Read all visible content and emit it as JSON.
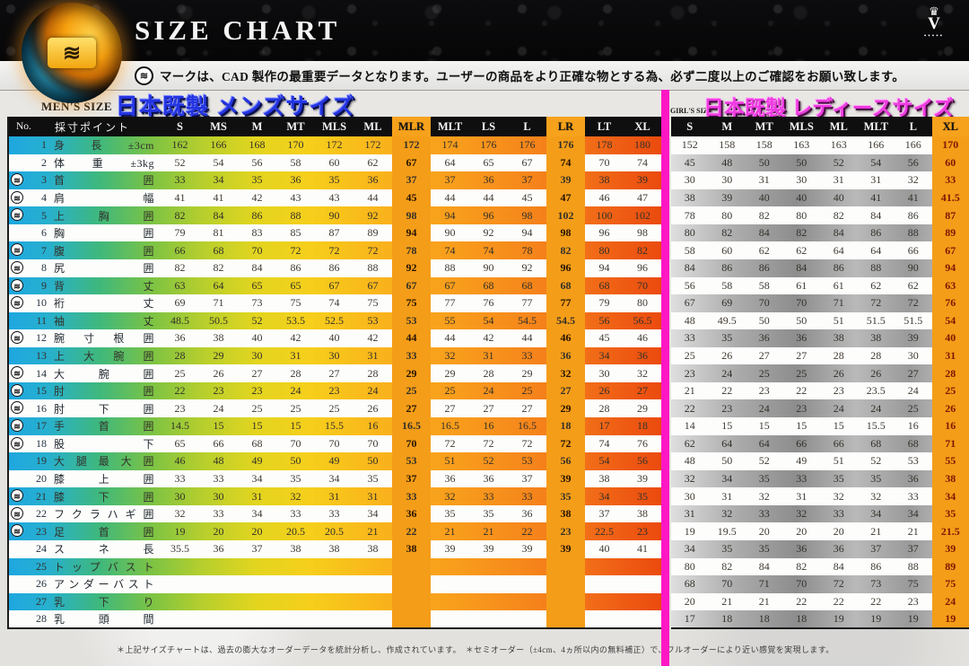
{
  "header": {
    "title": "SIZE CHART",
    "crown_icon": "♛",
    "crown_letter": "V",
    "crown_dots": "•••••"
  },
  "note": {
    "icon": "wave-mark",
    "text": "マークは、CAD 製作の最重要データとなります。ユーザーの商品をより正確な物とする為、必ず二度以上のご確認をお願い致します。"
  },
  "mens": {
    "size_label": "MEN'S SIZE",
    "title": "日本既製 メンズサイズ",
    "col_no": "No.",
    "col_point": "採寸ポイント",
    "columns": [
      "S",
      "MS",
      "M",
      "MT",
      "MLS",
      "ML",
      "MLR",
      "MLT",
      "LS",
      "L",
      "LR",
      "LT",
      "XL"
    ],
    "highlight_columns": [
      6,
      10
    ]
  },
  "girls": {
    "size_label": "GIRL'S SIZE",
    "title": "日本既製 レディースサイズ",
    "columns": [
      "S",
      "M",
      "MT",
      "MLS",
      "ML",
      "MLT",
      "L",
      "XL"
    ],
    "highlight_columns": [
      7
    ]
  },
  "colors": {
    "mens_title": "#2435e2",
    "girls_title": "#ef3be2",
    "divider_pink": "#ff17c4",
    "highlight_orange": "#f6a21c",
    "header_bg": "#0f0f10"
  },
  "rows": [
    {
      "no": "1",
      "label": "身長±3cm",
      "mark": false,
      "mens": [
        "162",
        "166",
        "168",
        "170",
        "172",
        "172",
        "172",
        "174",
        "176",
        "176",
        "176",
        "178",
        "180"
      ],
      "girls": [
        "152",
        "158",
        "158",
        "163",
        "163",
        "166",
        "166",
        "170"
      ]
    },
    {
      "no": "2",
      "label": "体重±3kg",
      "mark": false,
      "mens": [
        "52",
        "54",
        "56",
        "58",
        "60",
        "62",
        "67",
        "64",
        "65",
        "67",
        "74",
        "70",
        "74"
      ],
      "girls": [
        "45",
        "48",
        "50",
        "50",
        "52",
        "54",
        "56",
        "60"
      ]
    },
    {
      "no": "3",
      "label": "首囲",
      "mark": true,
      "mens": [
        "33",
        "34",
        "35",
        "36",
        "35",
        "36",
        "37",
        "37",
        "36",
        "37",
        "39",
        "38",
        "39"
      ],
      "girls": [
        "30",
        "30",
        "31",
        "30",
        "31",
        "31",
        "32",
        "33"
      ]
    },
    {
      "no": "4",
      "label": "肩幅",
      "mark": true,
      "mens": [
        "41",
        "41",
        "42",
        "43",
        "43",
        "44",
        "45",
        "44",
        "44",
        "45",
        "47",
        "46",
        "47"
      ],
      "girls": [
        "38",
        "39",
        "40",
        "40",
        "40",
        "41",
        "41",
        "41.5"
      ]
    },
    {
      "no": "5",
      "label": "上胸囲",
      "mark": true,
      "mens": [
        "82",
        "84",
        "86",
        "88",
        "90",
        "92",
        "98",
        "94",
        "96",
        "98",
        "102",
        "100",
        "102"
      ],
      "girls": [
        "78",
        "80",
        "82",
        "80",
        "82",
        "84",
        "86",
        "87"
      ]
    },
    {
      "no": "6",
      "label": "胸囲",
      "mark": false,
      "mens": [
        "79",
        "81",
        "83",
        "85",
        "87",
        "89",
        "94",
        "90",
        "92",
        "94",
        "98",
        "96",
        "98"
      ],
      "girls": [
        "80",
        "82",
        "84",
        "82",
        "84",
        "86",
        "88",
        "89"
      ]
    },
    {
      "no": "7",
      "label": "腹囲",
      "mark": true,
      "mens": [
        "66",
        "68",
        "70",
        "72",
        "72",
        "72",
        "78",
        "74",
        "74",
        "78",
        "82",
        "80",
        "82"
      ],
      "girls": [
        "58",
        "60",
        "62",
        "62",
        "64",
        "64",
        "66",
        "67"
      ]
    },
    {
      "no": "8",
      "label": "尻囲",
      "mark": true,
      "mens": [
        "82",
        "82",
        "84",
        "86",
        "86",
        "88",
        "92",
        "88",
        "90",
        "92",
        "96",
        "94",
        "96"
      ],
      "girls": [
        "84",
        "86",
        "86",
        "84",
        "86",
        "88",
        "90",
        "94"
      ]
    },
    {
      "no": "9",
      "label": "背丈",
      "mark": true,
      "mens": [
        "63",
        "64",
        "65",
        "65",
        "67",
        "67",
        "67",
        "67",
        "68",
        "68",
        "68",
        "68",
        "70"
      ],
      "girls": [
        "56",
        "58",
        "58",
        "61",
        "61",
        "62",
        "62",
        "63"
      ]
    },
    {
      "no": "10",
      "label": "裄丈",
      "mark": true,
      "mens": [
        "69",
        "71",
        "73",
        "75",
        "74",
        "75",
        "75",
        "77",
        "76",
        "77",
        "77",
        "79",
        "80"
      ],
      "girls": [
        "67",
        "69",
        "70",
        "70",
        "71",
        "72",
        "72",
        "76"
      ]
    },
    {
      "no": "11",
      "label": "袖丈",
      "mark": false,
      "mens": [
        "48.5",
        "50.5",
        "52",
        "53.5",
        "52.5",
        "53",
        "53",
        "55",
        "54",
        "54.5",
        "54.5",
        "56",
        "56.5"
      ],
      "girls": [
        "48",
        "49.5",
        "50",
        "50",
        "51",
        "51.5",
        "51.5",
        "54"
      ]
    },
    {
      "no": "12",
      "label": "腕寸根囲",
      "mark": true,
      "mens": [
        "36",
        "38",
        "40",
        "42",
        "40",
        "42",
        "44",
        "44",
        "42",
        "44",
        "46",
        "45",
        "46"
      ],
      "girls": [
        "33",
        "35",
        "36",
        "36",
        "38",
        "38",
        "39",
        "40"
      ]
    },
    {
      "no": "13",
      "label": "上大腕囲",
      "mark": false,
      "mens": [
        "28",
        "29",
        "30",
        "31",
        "30",
        "31",
        "33",
        "32",
        "31",
        "33",
        "36",
        "34",
        "36"
      ],
      "girls": [
        "25",
        "26",
        "27",
        "27",
        "28",
        "28",
        "30",
        "31"
      ]
    },
    {
      "no": "14",
      "label": "大腕囲",
      "mark": true,
      "mens": [
        "25",
        "26",
        "27",
        "28",
        "27",
        "28",
        "29",
        "29",
        "28",
        "29",
        "32",
        "30",
        "32"
      ],
      "girls": [
        "23",
        "24",
        "25",
        "25",
        "26",
        "26",
        "27",
        "28"
      ]
    },
    {
      "no": "15",
      "label": "肘囲",
      "mark": true,
      "mens": [
        "22",
        "23",
        "23",
        "24",
        "23",
        "24",
        "25",
        "25",
        "24",
        "25",
        "27",
        "26",
        "27"
      ],
      "girls": [
        "21",
        "22",
        "23",
        "22",
        "23",
        "23.5",
        "24",
        "25"
      ]
    },
    {
      "no": "16",
      "label": "肘下囲",
      "mark": true,
      "mens": [
        "23",
        "24",
        "25",
        "25",
        "25",
        "26",
        "27",
        "27",
        "27",
        "27",
        "29",
        "28",
        "29"
      ],
      "girls": [
        "22",
        "23",
        "24",
        "23",
        "24",
        "24",
        "25",
        "26"
      ]
    },
    {
      "no": "17",
      "label": "手首囲",
      "mark": true,
      "mens": [
        "14.5",
        "15",
        "15",
        "15",
        "15.5",
        "16",
        "16.5",
        "16.5",
        "16",
        "16.5",
        "18",
        "17",
        "18"
      ],
      "girls": [
        "14",
        "15",
        "15",
        "15",
        "15",
        "15.5",
        "16",
        "16"
      ]
    },
    {
      "no": "18",
      "label": "股下",
      "mark": true,
      "mens": [
        "65",
        "66",
        "68",
        "70",
        "70",
        "70",
        "70",
        "72",
        "72",
        "72",
        "72",
        "74",
        "76"
      ],
      "girls": [
        "62",
        "64",
        "64",
        "66",
        "66",
        "68",
        "68",
        "71"
      ]
    },
    {
      "no": "19",
      "label": "大腿最大囲",
      "mark": false,
      "mens": [
        "46",
        "48",
        "49",
        "50",
        "49",
        "50",
        "53",
        "51",
        "52",
        "53",
        "56",
        "54",
        "56"
      ],
      "girls": [
        "48",
        "50",
        "52",
        "49",
        "51",
        "52",
        "53",
        "55"
      ]
    },
    {
      "no": "20",
      "label": "膝上囲",
      "mark": false,
      "mens": [
        "33",
        "33",
        "34",
        "35",
        "34",
        "35",
        "37",
        "36",
        "36",
        "37",
        "39",
        "38",
        "39"
      ],
      "girls": [
        "32",
        "34",
        "35",
        "33",
        "35",
        "35",
        "36",
        "38"
      ]
    },
    {
      "no": "21",
      "label": "膝下囲",
      "mark": true,
      "mens": [
        "30",
        "30",
        "31",
        "32",
        "31",
        "31",
        "33",
        "32",
        "33",
        "33",
        "35",
        "34",
        "35"
      ],
      "girls": [
        "30",
        "31",
        "32",
        "31",
        "32",
        "32",
        "33",
        "34"
      ]
    },
    {
      "no": "22",
      "label": "フクラハギ囲",
      "mark": true,
      "mens": [
        "32",
        "33",
        "34",
        "33",
        "33",
        "34",
        "36",
        "35",
        "35",
        "36",
        "38",
        "37",
        "38"
      ],
      "girls": [
        "31",
        "32",
        "33",
        "32",
        "33",
        "34",
        "34",
        "35"
      ]
    },
    {
      "no": "23",
      "label": "足首囲",
      "mark": true,
      "mens": [
        "19",
        "20",
        "20",
        "20.5",
        "20.5",
        "21",
        "22",
        "21",
        "21",
        "22",
        "23",
        "22.5",
        "23"
      ],
      "girls": [
        "19",
        "19.5",
        "20",
        "20",
        "20",
        "21",
        "21",
        "21.5"
      ]
    },
    {
      "no": "24",
      "label": "スネ長",
      "mark": false,
      "mens": [
        "35.5",
        "36",
        "37",
        "38",
        "38",
        "38",
        "38",
        "39",
        "39",
        "39",
        "39",
        "40",
        "41"
      ],
      "girls": [
        "34",
        "35",
        "35",
        "36",
        "36",
        "37",
        "37",
        "39"
      ]
    },
    {
      "no": "25",
      "label": "トップバスト",
      "mark": false,
      "mens": [
        "",
        "",
        "",
        "",
        "",
        "",
        "",
        "",
        "",
        "",
        "",
        "",
        ""
      ],
      "girls": [
        "80",
        "82",
        "84",
        "82",
        "84",
        "86",
        "88",
        "89"
      ]
    },
    {
      "no": "26",
      "label": "アンダーバスト",
      "mark": false,
      "mens": [
        "",
        "",
        "",
        "",
        "",
        "",
        "",
        "",
        "",
        "",
        "",
        "",
        ""
      ],
      "girls": [
        "68",
        "70",
        "71",
        "70",
        "72",
        "73",
        "75",
        "75"
      ]
    },
    {
      "no": "27",
      "label": "乳下り",
      "mark": false,
      "mens": [
        "",
        "",
        "",
        "",
        "",
        "",
        "",
        "",
        "",
        "",
        "",
        "",
        ""
      ],
      "girls": [
        "20",
        "21",
        "21",
        "22",
        "22",
        "22",
        "23",
        "24"
      ]
    },
    {
      "no": "28",
      "label": "乳頭間",
      "mark": false,
      "mens": [
        "",
        "",
        "",
        "",
        "",
        "",
        "",
        "",
        "",
        "",
        "",
        "",
        ""
      ],
      "girls": [
        "17",
        "18",
        "18",
        "18",
        "19",
        "19",
        "19",
        "19"
      ]
    }
  ],
  "footnote": "＊上記サイズチャートは、過去の膨大なオーダーデータを統計分析し、作成されています。　＊セミオーダー（±4cm、4ヵ所以内の無料補正）で、フルオーダーにより近い感覚を実現します。"
}
